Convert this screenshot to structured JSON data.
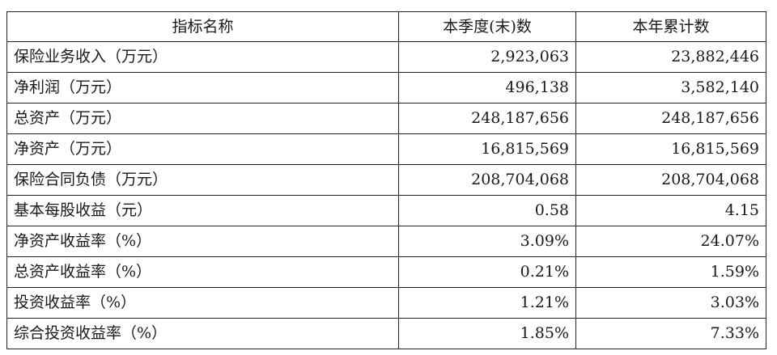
{
  "table": {
    "headers": [
      "指标名称",
      "本季度(末)数",
      "本年累计数"
    ],
    "rows": [
      {
        "label": "保险业务收入（万元）",
        "quarter": "2,923,063",
        "ytd": "23,882,446"
      },
      {
        "label": "净利润（万元）",
        "quarter": "496,138",
        "ytd": "3,582,140"
      },
      {
        "label": "总资产（万元）",
        "quarter": "248,187,656",
        "ytd": "248,187,656"
      },
      {
        "label": "净资产（万元）",
        "quarter": "16,815,569",
        "ytd": "16,815,569"
      },
      {
        "label": "保险合同负债（万元）",
        "quarter": "208,704,068",
        "ytd": "208,704,068"
      },
      {
        "label": "基本每股收益（元）",
        "quarter": "0.58",
        "ytd": "4.15"
      },
      {
        "label": "净资产收益率（%）",
        "quarter": "3.09%",
        "ytd": "24.07%"
      },
      {
        "label": "总资产收益率（%）",
        "quarter": "0.21%",
        "ytd": "1.59%"
      },
      {
        "label": "投资收益率（%）",
        "quarter": "1.21%",
        "ytd": "3.03%"
      },
      {
        "label": "综合投资收益率（%）",
        "quarter": "1.85%",
        "ytd": "7.33%"
      }
    ]
  }
}
